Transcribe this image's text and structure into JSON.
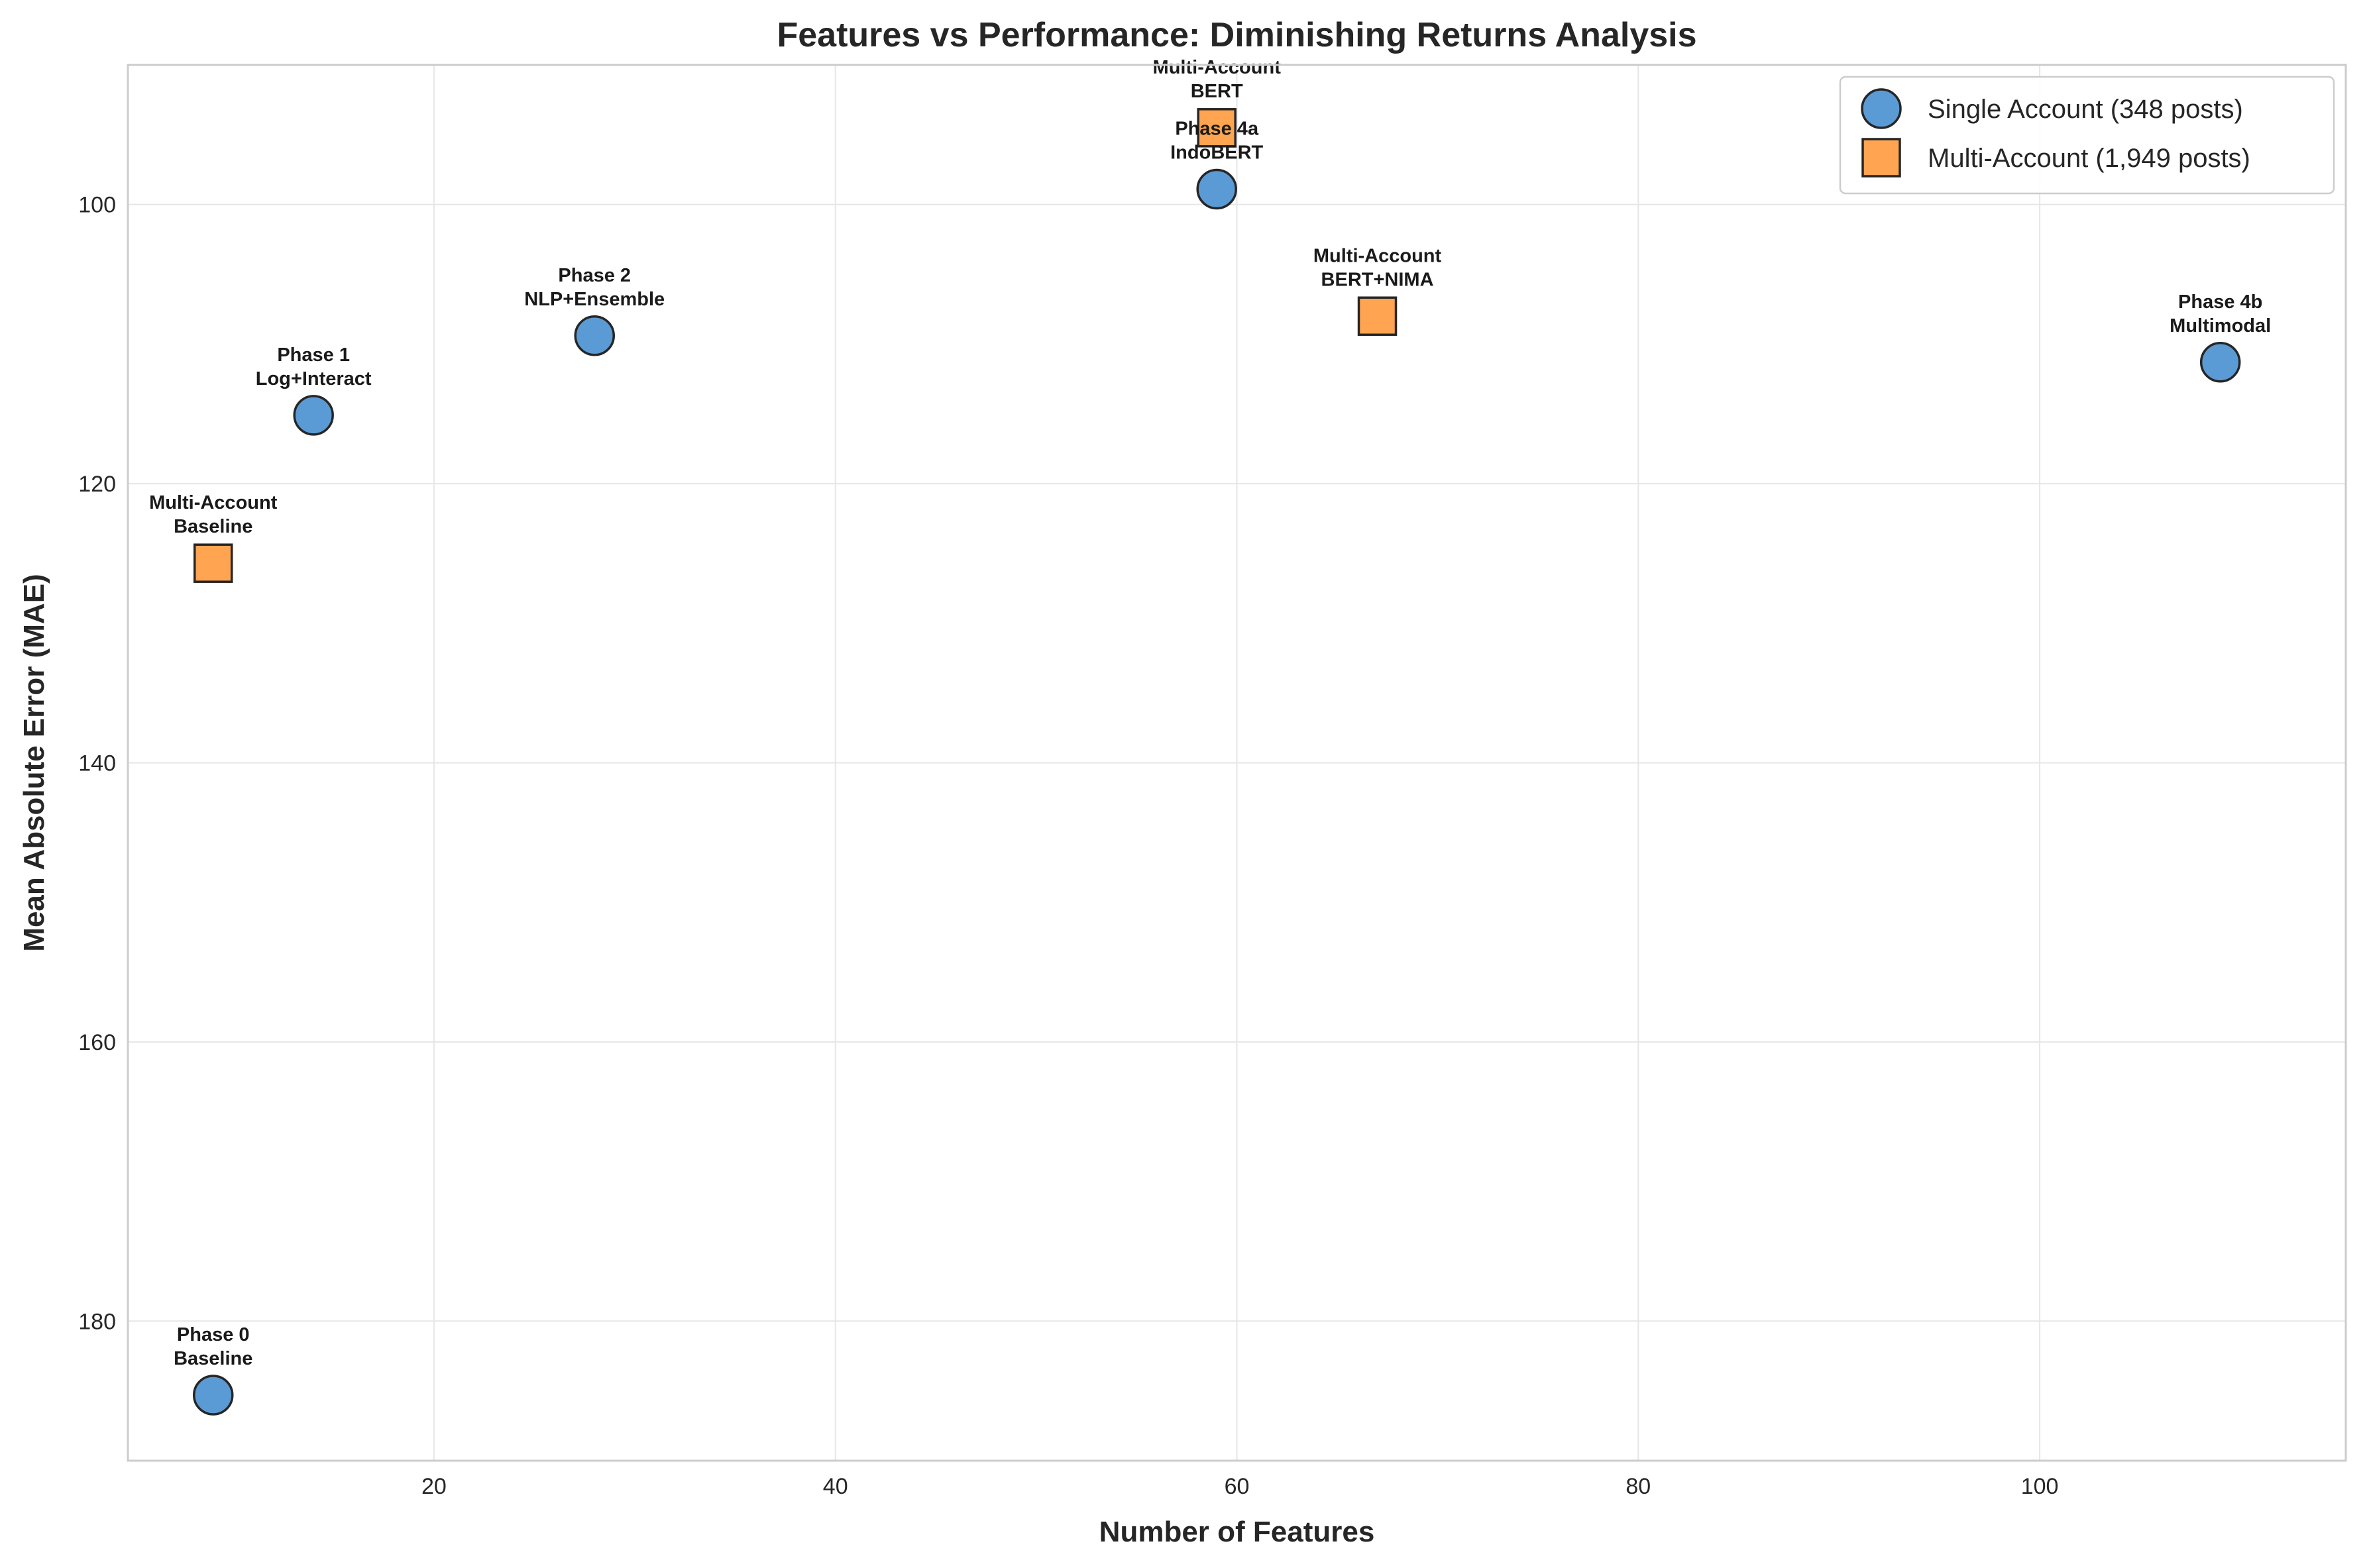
{
  "chart_data": {
    "type": "scatter",
    "title": "Features vs Performance: Diminishing Returns Analysis",
    "xlabel": "Number of Features",
    "ylabel": "Mean Absolute Error (MAE)",
    "xlim": [
      4.75,
      115.25
    ],
    "ylim": [
      190,
      90
    ],
    "y_inverted": true,
    "xticks": [
      20,
      40,
      60,
      80,
      100
    ],
    "yticks": [
      100,
      120,
      140,
      160,
      180
    ],
    "grid": true,
    "legend_position": "top-right",
    "series": [
      {
        "name": "Single Account (348 posts)",
        "marker": "circle",
        "color": "#5b9bd5",
        "points": [
          {
            "x": 9,
            "y": 185.3,
            "label": [
              "Phase 0",
              "Baseline"
            ]
          },
          {
            "x": 14,
            "y": 115.1,
            "label": [
              "Phase 1",
              "Log+Interact"
            ]
          },
          {
            "x": 28,
            "y": 109.4,
            "label": [
              "Phase 2",
              "NLP+Ensemble"
            ]
          },
          {
            "x": 59,
            "y": 98.9,
            "label": [
              "Phase 4a",
              "IndoBERT"
            ]
          },
          {
            "x": 109,
            "y": 111.3,
            "label": [
              "Phase 4b",
              "Multimodal"
            ]
          }
        ]
      },
      {
        "name": "Multi-Account (1,949 posts)",
        "marker": "square",
        "color": "#ffa451",
        "points": [
          {
            "x": 9,
            "y": 125.7,
            "label": [
              "Multi-Account",
              "Baseline"
            ]
          },
          {
            "x": 59,
            "y": 94.5,
            "label": [
              "Multi-Account",
              "BERT"
            ]
          },
          {
            "x": 67,
            "y": 108.0,
            "label": [
              "Multi-Account",
              "BERT+NIMA"
            ]
          }
        ]
      }
    ]
  }
}
